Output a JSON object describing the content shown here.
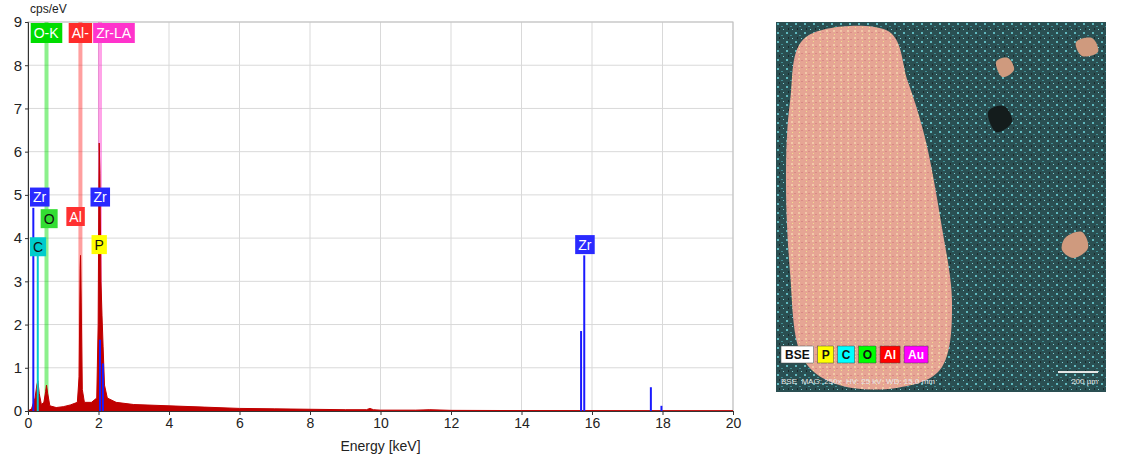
{
  "chart_data": {
    "type": "area",
    "x_label": "Energy [keV]",
    "y_label": "cps/eV",
    "x": [
      0.0,
      0.1,
      0.2,
      0.25,
      0.28,
      0.32,
      0.38,
      0.45,
      0.5,
      0.525,
      0.56,
      0.62,
      0.8,
      1.0,
      1.2,
      1.4,
      1.45,
      1.48,
      1.49,
      1.51,
      1.54,
      1.6,
      1.8,
      1.95,
      1.99,
      2.01,
      2.02,
      2.04,
      2.07,
      2.1,
      2.13,
      2.17,
      2.25,
      2.5,
      3.0,
      4.0,
      5.0,
      6.0,
      7.0,
      8.0,
      9.0,
      9.6,
      9.7,
      9.8,
      10.0,
      11.0,
      11.4,
      12.0,
      14.0,
      16.0,
      18.0,
      20.0
    ],
    "values": [
      0.0,
      0.05,
      0.3,
      0.6,
      0.7,
      0.4,
      0.15,
      0.2,
      0.45,
      0.6,
      0.4,
      0.12,
      0.08,
      0.1,
      0.14,
      0.2,
      0.8,
      3.3,
      3.6,
      2.5,
      0.5,
      0.2,
      0.2,
      0.3,
      2.0,
      5.0,
      6.2,
      5.5,
      3.0,
      2.2,
      1.5,
      0.6,
      0.3,
      0.2,
      0.15,
      0.12,
      0.09,
      0.06,
      0.05,
      0.04,
      0.03,
      0.03,
      0.06,
      0.03,
      0.02,
      0.02,
      0.03,
      0.015,
      0.01,
      0.008,
      0.005,
      0.003
    ],
    "color": "#c00000",
    "xlim": [
      0,
      20
    ],
    "xticks": [
      0,
      2,
      4,
      6,
      8,
      10,
      12,
      14,
      16,
      18,
      20
    ],
    "ylim": [
      0,
      9
    ],
    "yticks": [
      0,
      1,
      2,
      3,
      4,
      5,
      6,
      7,
      8,
      9
    ],
    "grid": true,
    "marker_lines": [
      {
        "label": "O-K",
        "x": 0.525,
        "color": "#00dd00"
      },
      {
        "label": "Al-",
        "x": 1.487,
        "color": "#ff2a2a"
      },
      {
        "label": "Zr-LA",
        "x": 2.042,
        "color": "#ff33cc"
      }
    ],
    "element_lines": [
      {
        "x": 0.151,
        "height": 4.7,
        "color": "#1a1aff"
      },
      {
        "x": 0.277,
        "height": 3.6,
        "color": "#00cccc"
      },
      {
        "x": 2.042,
        "height": 1.65,
        "color": "#1a1aff"
      },
      {
        "x": 2.124,
        "height": 1.1,
        "color": "#1a1aff"
      },
      {
        "x": 15.69,
        "height": 1.85,
        "color": "#1a1aff"
      },
      {
        "x": 15.78,
        "height": 3.6,
        "color": "#1a1aff"
      },
      {
        "x": 17.67,
        "height": 0.55,
        "color": "#1a1aff"
      },
      {
        "x": 17.97,
        "height": 0.12,
        "color": "#1a1aff"
      }
    ],
    "element_labels": [
      {
        "text": "Zr",
        "x": 0.1,
        "y": 4.95,
        "color": "#2a2aff"
      },
      {
        "text": "O",
        "x": 0.6,
        "y": 4.45,
        "color": "#33dd33"
      },
      {
        "text": "C",
        "x": 0.1,
        "y": 3.8,
        "color": "#00cccc"
      },
      {
        "text": "Al",
        "x": 1.35,
        "y": 4.5,
        "color": "#ff3030"
      },
      {
        "text": "Zr",
        "x": 2.05,
        "y": 4.95,
        "color": "#2a2aff"
      },
      {
        "text": "P",
        "x": 2.02,
        "y": 3.85,
        "color": "#ffff00"
      },
      {
        "text": "Zr",
        "x": 15.8,
        "y": 3.85,
        "color": "#2a2aff"
      }
    ]
  },
  "map_panel": {
    "channels": [
      "BSE",
      "P",
      "C",
      "O",
      "Al",
      "Au"
    ],
    "colors": [
      "#ffffff",
      "#ffff00",
      "#00ffff",
      "#00ff00",
      "#ff0000",
      "#ff00ff"
    ],
    "info": "BSE  MAG: 250x  HV: 25 kV  WD: 15.0 mm",
    "scale_bar": "200 µm"
  }
}
